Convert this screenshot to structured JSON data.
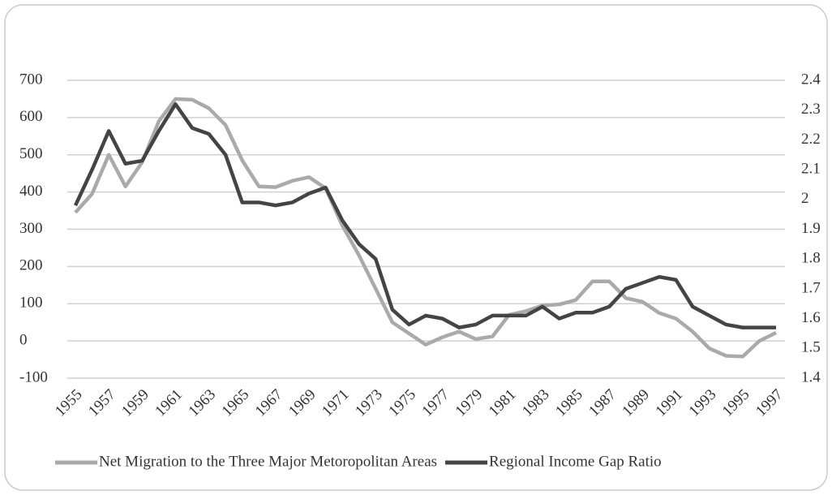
{
  "chart_data": {
    "type": "line",
    "categories": [
      "1955",
      null,
      "1957",
      null,
      "1959",
      null,
      "1961",
      null,
      "1963",
      null,
      "1965",
      null,
      "1967",
      null,
      "1969",
      null,
      "1971",
      null,
      "1973",
      null,
      "1975",
      null,
      "1977",
      null,
      "1979",
      null,
      "1981",
      null,
      "1983",
      null,
      "1985",
      null,
      "1987",
      null,
      "1989",
      null,
      "1991",
      null,
      "1993",
      null,
      "1995",
      null,
      "1997"
    ],
    "series": [
      {
        "name": "Net Migration to the Three Major Metoropolitan Areas",
        "color": "#aaaaaa",
        "axis": "y",
        "values": [
          345,
          395,
          500,
          415,
          480,
          590,
          650,
          648,
          625,
          580,
          485,
          415,
          413,
          430,
          440,
          410,
          310,
          230,
          140,
          50,
          20,
          -10,
          10,
          25,
          5,
          12,
          70,
          80,
          95,
          98,
          110,
          160,
          160,
          115,
          105,
          75,
          60,
          25,
          -20,
          -40,
          -42,
          0,
          22
        ]
      },
      {
        "name": "Regional Income Gap Ratio",
        "color": "#444444",
        "axis": "y2",
        "values": [
          1.98,
          2.1,
          2.23,
          2.12,
          2.13,
          2.23,
          2.32,
          2.24,
          2.22,
          2.15,
          1.99,
          1.99,
          1.98,
          1.99,
          2.02,
          2.04,
          1.93,
          1.85,
          1.8,
          1.63,
          1.58,
          1.61,
          1.6,
          1.57,
          1.58,
          1.61,
          1.61,
          1.61,
          1.64,
          1.6,
          1.62,
          1.62,
          1.64,
          1.7,
          1.72,
          1.74,
          1.73,
          1.64,
          1.61,
          1.58,
          1.57,
          1.57,
          1.57
        ]
      }
    ],
    "ylim": [
      -100,
      700
    ],
    "yticks": [
      -100,
      0,
      100,
      200,
      300,
      400,
      500,
      600,
      700
    ],
    "y2lim": [
      1.4,
      2.4
    ],
    "y2ticks": [
      1.4,
      1.5,
      1.6,
      1.7,
      1.8,
      1.9,
      2,
      2.1,
      2.2,
      2.3,
      2.4
    ],
    "grid": true,
    "legend": "bottom"
  }
}
